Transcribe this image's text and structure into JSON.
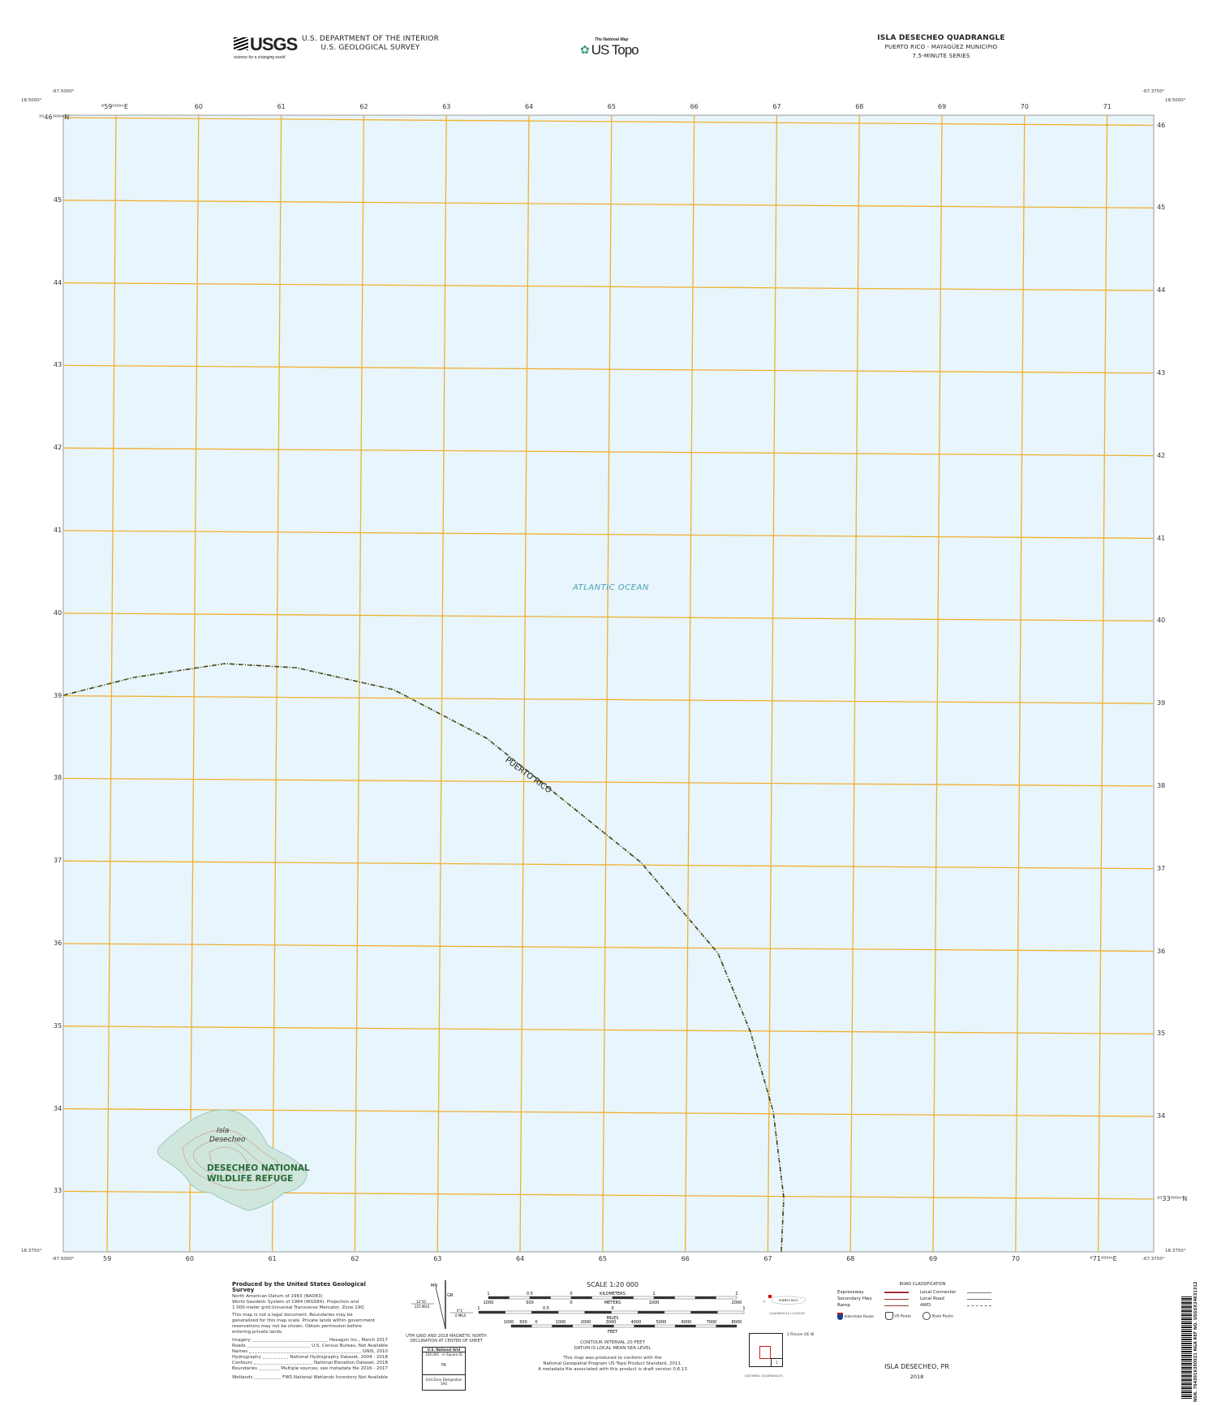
{
  "header": {
    "usgs_logo": "USGS",
    "usgs_tagline": "science for a changing world",
    "dept_line1": "U.S. DEPARTMENT OF THE INTERIOR",
    "dept_line2": "U.S. GEOLOGICAL SURVEY",
    "national_map_small": "The National Map",
    "us_topo": "US Topo",
    "quad_title": "ISLA DESECHEO QUADRANGLE",
    "quad_subtitle": "PUERTO RICO - MAYAGÜEZ MUNICIPIO",
    "series": "7.5-MINUTE SERIES"
  },
  "corners": {
    "tl_lon": "-67.5000°",
    "tl_lat": "18.5000°",
    "tr_lon": "-67.3750°",
    "tr_lat": "18.5000°",
    "bl_lon": "-67.5000°",
    "bl_lat": "18.3750°",
    "br_lon": "-67.3750°",
    "br_lat": "18.3750°"
  },
  "grid": {
    "easting_labels": [
      "⁶59⁰⁰⁰ᵐE",
      "60",
      "61",
      "62",
      "63",
      "64",
      "65",
      "66",
      "67",
      "68",
      "69",
      "70",
      "71"
    ],
    "easting_labels_bottom": [
      "59",
      "60",
      "61",
      "62",
      "63",
      "64",
      "65",
      "66",
      "67",
      "68",
      "69",
      "70",
      "⁶71⁰⁰⁰ᵐE"
    ],
    "northing_labels_left": [
      "²⁰46⁰⁰⁰ᵐN",
      "45",
      "44",
      "43",
      "42",
      "41",
      "40",
      "39",
      "38",
      "37",
      "36",
      "35",
      "34",
      "33"
    ],
    "northing_labels_right": [
      "46",
      "45",
      "44",
      "43",
      "42",
      "41",
      "40",
      "39",
      "38",
      "37",
      "36",
      "35",
      "34",
      "²⁰33⁰⁰⁰ᵐN"
    ],
    "line_color": "#f0b030",
    "water_color": "#e8f5fc"
  },
  "map": {
    "ocean_label": "ATLANTIC OCEAN",
    "boundary_label": "PUERTO RICO",
    "island_label_1": "Isla",
    "island_label_2": "Desecheo",
    "refuge_label_1": "DESECHEO NATIONAL",
    "refuge_label_2": "WILDLIFE REFUGE"
  },
  "footer": {
    "produced_by": "Produced by the United States Geological Survey",
    "datum_lines": [
      "North American Datum of 1983 (NAD83)",
      "World Geodetic System of 1984 (WGS84). Projection and",
      "1 000-meter grid:Universal Transverse Mercator, Zone 19Q"
    ],
    "legal_lines": [
      "This map is not a legal document. Boundaries may be",
      "generalized for this map scale. Private lands within government",
      "reservations may not be shown. Obtain permission before",
      "entering private lands."
    ],
    "credits": [
      {
        "k": "Imagery",
        "v": "Hexagon Inc., March 2017"
      },
      {
        "k": "Roads",
        "v": "U.S. Census Bureau, Not Available"
      },
      {
        "k": "Names",
        "v": "GNIS, 2010"
      },
      {
        "k": "Hydrography",
        "v": "National Hydrography Dataset, 2004 - 2018"
      },
      {
        "k": "Contours",
        "v": "National Elevation Dataset, 2018"
      },
      {
        "k": "Boundaries",
        "v": "Multiple sources; see metadata file 2016 - 2017"
      },
      {
        "k": "Wetlands",
        "v": "FWS National Wetlands Inventory Not Available"
      }
    ],
    "declination": {
      "mn": "MN",
      "gn": "GN",
      "left_angle": "12°41'",
      "left_mils": "225 MILS",
      "right_angle": "0°1'",
      "right_mils": "0 MILS",
      "caption1": "UTM GRID AND 2018 MAGNETIC NORTH",
      "caption2": "DECLINATION AT CENTER OF SHEET"
    },
    "usng": {
      "title": "U.S. National Grid",
      "sub": "100,000 - m Square ID",
      "id": "FA",
      "gzd_label": "Grid Zone Designation",
      "gzd": "19Q"
    },
    "scale": {
      "title": "SCALE 1:20 000",
      "km_ticks": [
        "1",
        "0.5",
        "0",
        "1",
        "2"
      ],
      "km_label": "KILOMETERS",
      "m_ticks": [
        "1000",
        "500",
        "0",
        "1000",
        "2000"
      ],
      "m_label": "METERS",
      "mi_ticks": [
        "1",
        "0.5",
        "0",
        "1"
      ],
      "mi_label": "MILES",
      "ft_ticks": [
        "1000",
        "500",
        "0",
        "1000",
        "2000",
        "3000",
        "4000",
        "5000",
        "6000",
        "7000",
        "8000"
      ],
      "ft_label": "FEET"
    },
    "contour": "CONTOUR INTERVAL 20 FEET",
    "datum": "DATUM IS LOCAL MEAN SEA LEVEL",
    "conform_lines": [
      "This map was produced to conform with the",
      "National Geospatial Program US Topo Product Standard, 2011.",
      "A metadata file associated with this product is draft version 0.6.13"
    ],
    "location": {
      "label": "PUERTO RICO",
      "caption": "QUADRANGLE LOCATION"
    },
    "adjoining": {
      "item": "1 Rincon OE W",
      "cell": "1",
      "caption": "ADJOINING QUADRANGLES"
    },
    "roads": {
      "title": "ROAD CLASSIFICATION",
      "left": [
        "Expressway",
        "Secondary Hwy",
        "Ramp"
      ],
      "right": [
        "Local Connector",
        "Local Road",
        "4WD"
      ],
      "shields": [
        "Interstate Route",
        "US Route",
        "State Route"
      ],
      "road_color": "#a03030"
    },
    "sheet_name": "ISLA DESECHEO,  PR",
    "year": "2018",
    "barcode_text": "NSN. 7643016350921 NGA REF NO. USGSX24K31312"
  }
}
